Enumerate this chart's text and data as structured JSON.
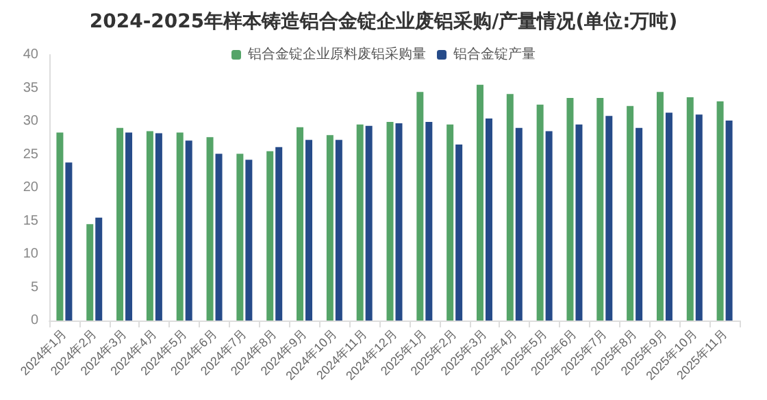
{
  "chart_data": {
    "type": "bar",
    "title": "2024-2025年样本铸造铝合金锭企业废铝采购/产量情况(单位:万吨)",
    "categories": [
      "2024年1月",
      "2024年2月",
      "2024年3月",
      "2024年4月",
      "2024年5月",
      "2024年6月",
      "2024年7月",
      "2024年8月",
      "2024年9月",
      "2024年10月",
      "2024年11月",
      "2024年12月",
      "2025年1月",
      "2025年2月",
      "2025年3月",
      "2025年4月",
      "2025年5月",
      "2025年6月",
      "2025年7月",
      "2025年8月",
      "2025年9月",
      "2025年10月",
      "2025年11月"
    ],
    "series": [
      {
        "name": "铝合金锭企业原料废铝采购量",
        "color": "#55a468",
        "values": [
          28.3,
          14.5,
          29.0,
          28.5,
          28.3,
          27.6,
          25.1,
          25.5,
          29.1,
          27.9,
          29.5,
          29.9,
          34.4,
          29.5,
          35.5,
          34.1,
          32.5,
          33.5,
          33.5,
          32.3,
          34.4,
          33.6,
          33.0
        ]
      },
      {
        "name": "铝合金锭产量",
        "color": "#264b89",
        "values": [
          23.8,
          15.5,
          28.3,
          28.2,
          27.1,
          25.1,
          24.2,
          26.1,
          27.2,
          27.2,
          29.3,
          29.7,
          29.9,
          26.5,
          30.4,
          29.0,
          28.5,
          29.5,
          30.8,
          29.0,
          31.3,
          31.0,
          30.1
        ]
      }
    ],
    "ylim": [
      0,
      40
    ],
    "yticks": [
      0,
      5,
      10,
      15,
      20,
      25,
      30,
      35,
      40
    ],
    "grid": false,
    "legend": "top"
  }
}
